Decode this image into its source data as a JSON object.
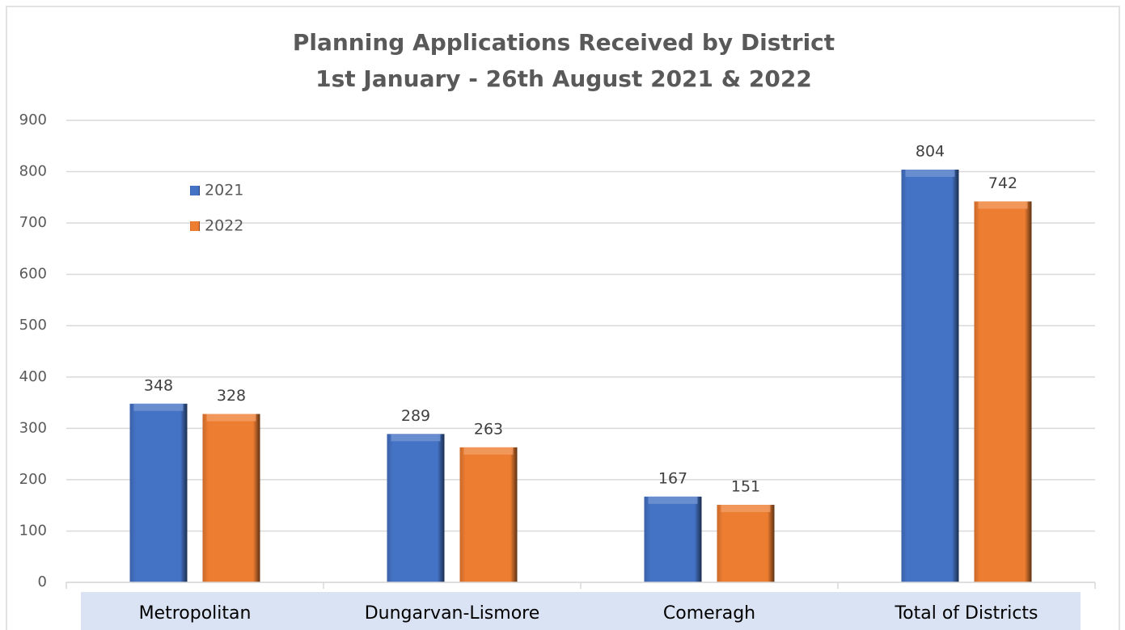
{
  "chart_data": {
    "type": "bar",
    "title": "Planning Applications Received by District",
    "subtitle": "1st January - 26th August 2021 & 2022",
    "categories": [
      "Metropolitan",
      "Dungarvan-Lismore",
      "Comeragh",
      "Total of Districts"
    ],
    "series": [
      {
        "name": "2021",
        "color": "#4472c4",
        "values": [
          348,
          289,
          167,
          804
        ]
      },
      {
        "name": "2022",
        "color": "#ed7d31",
        "values": [
          328,
          263,
          151,
          742
        ]
      }
    ],
    "ylim": [
      0,
      900
    ],
    "yticks": [
      0,
      100,
      200,
      300,
      400,
      500,
      600,
      700,
      800,
      900
    ],
    "grid": true,
    "legend": "top-left"
  }
}
